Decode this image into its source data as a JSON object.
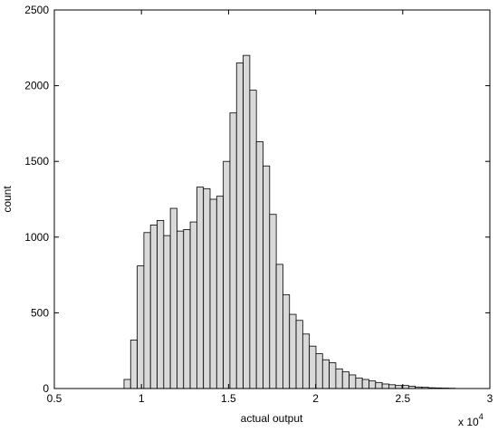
{
  "chart_data": {
    "type": "histogram",
    "xlabel": "actual output",
    "ylabel": "count",
    "x_multiplier": {
      "base": "x 10",
      "exponent": "4"
    },
    "color": "#d9d9d9",
    "edgecolor": "#000000",
    "bins": [
      0.9,
      0.938,
      0.976,
      1.014,
      1.052,
      1.09,
      1.128,
      1.166,
      1.204,
      1.242,
      1.28,
      1.318,
      1.356,
      1.394,
      1.432,
      1.47,
      1.508,
      1.546,
      1.584,
      1.622,
      1.66,
      1.698,
      1.736,
      1.774,
      1.812,
      1.85,
      1.888,
      1.926,
      1.964,
      2.002,
      2.04,
      2.078,
      2.116,
      2.154,
      2.192,
      2.23,
      2.268,
      2.306,
      2.344,
      2.382,
      2.42,
      2.458,
      2.496,
      2.534,
      2.572,
      2.61,
      2.648,
      2.686,
      2.724,
      2.762,
      2.8
    ],
    "values": [
      60,
      320,
      810,
      1030,
      1080,
      1110,
      1010,
      1190,
      1040,
      1050,
      1100,
      1330,
      1320,
      1250,
      1270,
      1500,
      1820,
      2150,
      2200,
      1970,
      1630,
      1470,
      1150,
      820,
      620,
      490,
      450,
      360,
      280,
      230,
      190,
      170,
      130,
      110,
      90,
      70,
      60,
      50,
      40,
      30,
      25,
      20,
      20,
      15,
      10,
      8,
      5,
      4,
      3,
      2
    ],
    "xlim": [
      0.5,
      3
    ],
    "ylim": [
      0,
      2500
    ],
    "xticks": [
      0.5,
      1,
      1.5,
      2,
      2.5,
      3
    ],
    "yticks": [
      0,
      500,
      1000,
      1500,
      2000,
      2500
    ]
  }
}
